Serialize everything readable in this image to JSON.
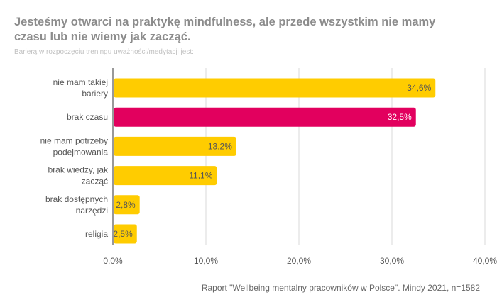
{
  "chart_data": {
    "type": "bar",
    "orientation": "horizontal",
    "title": "Jesteśmy otwarci na praktykę mindfulness, ale przede wszystkim nie mamy czasu lub nie wiemy jak zacząć.",
    "subtitle": "Barierą w rozpoczęciu treningu uważności/medytacji jest:",
    "categories": [
      [
        "nie mam takiej",
        "bariery"
      ],
      [
        "brak czasu"
      ],
      [
        "nie mam potrzeby",
        "podejmowania"
      ],
      [
        "brak wiedzy, jak",
        "zacząć"
      ],
      [
        "brak dostępnych",
        "narzędzi"
      ],
      [
        "religia"
      ]
    ],
    "values": [
      34.6,
      32.5,
      13.2,
      11.1,
      2.8,
      2.5
    ],
    "value_labels": [
      "34,6%",
      "32,5%",
      "13,2%",
      "11,1%",
      "2,8%",
      "2,5%"
    ],
    "bar_colors": [
      "#ffcc00",
      "#e2005e",
      "#ffcc00",
      "#ffcc00",
      "#ffcc00",
      "#ffcc00"
    ],
    "label_colors": [
      "#555555",
      "#ffffff",
      "#555555",
      "#555555",
      "#555555",
      "#555555"
    ],
    "xlim": [
      0,
      40
    ],
    "xticks": [
      0,
      10,
      20,
      30,
      40
    ],
    "xtick_labels": [
      "0,0%",
      "10,0%",
      "20,0%",
      "30,0%",
      "40,0%"
    ],
    "grid": true,
    "xlabel": "",
    "ylabel": ""
  },
  "source": "Raport \"Wellbeing mentalny pracowników w Polsce\". Mindy 2021, n=1582",
  "colors": {
    "primary": "#ffcc00",
    "highlight": "#e2005e",
    "title": "#8c8c8c",
    "grid": "#d9d9d9"
  }
}
